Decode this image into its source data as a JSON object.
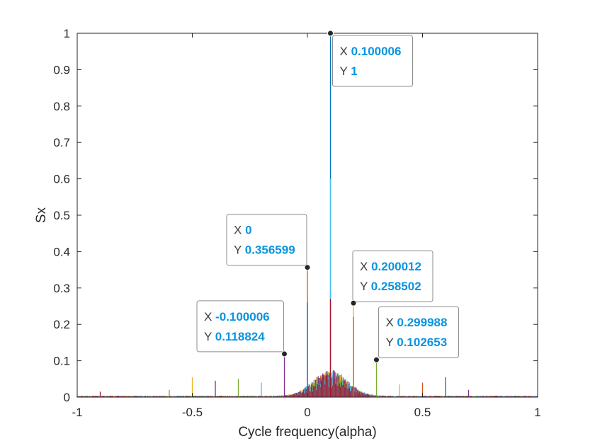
{
  "chart_data": {
    "type": "line",
    "title": "",
    "xlabel": "Cycle frequency(alpha)",
    "ylabel": "Sx",
    "xlim": [
      -1,
      1
    ],
    "ylim": [
      0,
      1
    ],
    "xticks": [
      "-1",
      "-0.5",
      "0",
      "0.5",
      "1"
    ],
    "yticks": [
      "0",
      "0.1",
      "0.2",
      "0.3",
      "0.4",
      "0.5",
      "0.6",
      "0.7",
      "0.8",
      "0.9",
      "1"
    ],
    "grid": false,
    "colors": [
      "#0072BD",
      "#D95319",
      "#EDB120",
      "#7E2F8E",
      "#77AC30",
      "#4DBEEE",
      "#A2142F"
    ],
    "peaks": [
      {
        "x": 0.100006,
        "y": 1
      },
      {
        "x": 0,
        "y": 0.356599
      },
      {
        "x": 0.200012,
        "y": 0.258502
      },
      {
        "x": -0.100006,
        "y": 0.118824
      },
      {
        "x": 0.299988,
        "y": 0.102653
      },
      {
        "x": 0.1,
        "y": 0.6
      },
      {
        "x": 0.1,
        "y": 0.27
      },
      {
        "x": 0,
        "y": 0.26
      },
      {
        "x": 0.2,
        "y": 0.22
      },
      {
        "x": -0.5,
        "y": 0.055
      },
      {
        "x": -0.4,
        "y": 0.045
      },
      {
        "x": -0.3,
        "y": 0.05
      },
      {
        "x": -0.2,
        "y": 0.04
      },
      {
        "x": -0.9,
        "y": 0.015
      },
      {
        "x": 0.6,
        "y": 0.055
      },
      {
        "x": 0.5,
        "y": 0.04
      },
      {
        "x": 0.4,
        "y": 0.035
      },
      {
        "x": 0.7,
        "y": 0.02
      },
      {
        "x": -0.6,
        "y": 0.02
      }
    ],
    "datatips": [
      {
        "x_label": "X",
        "y_label": "Y",
        "x_value": "0.100006",
        "y_value": "1",
        "px": 0.100006,
        "py": 1
      },
      {
        "x_label": "X",
        "y_label": "Y",
        "x_value": "0",
        "y_value": "0.356599",
        "px": 0,
        "py": 0.356599
      },
      {
        "x_label": "X",
        "y_label": "Y",
        "x_value": "0.200012",
        "y_value": "0.258502",
        "px": 0.200012,
        "py": 0.258502
      },
      {
        "x_label": "X",
        "y_label": "Y",
        "x_value": "-0.100006",
        "y_value": "0.118824",
        "px": -0.100006,
        "py": 0.118824
      },
      {
        "x_label": "X",
        "y_label": "Y",
        "x_value": "0.299988",
        "y_value": "0.102653",
        "px": 0.299988,
        "py": 0.102653
      }
    ],
    "datatip_value_color": "#0A94E0"
  }
}
